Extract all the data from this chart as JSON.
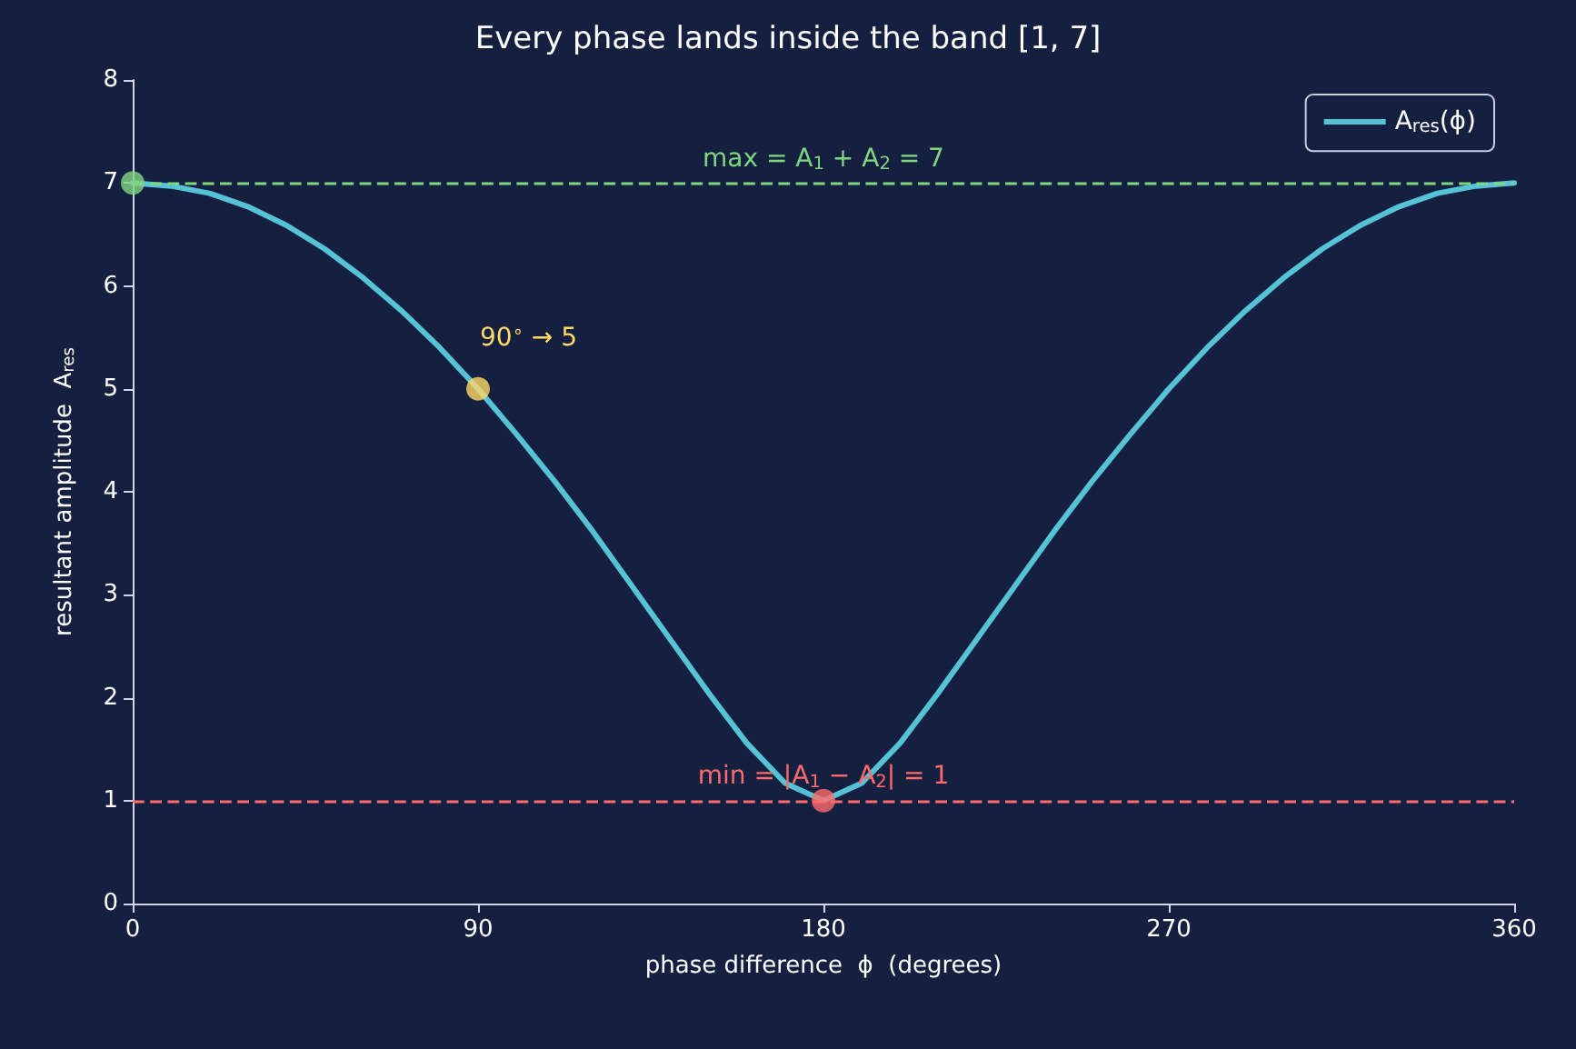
{
  "chart_data": {
    "type": "line",
    "title": "Every phase lands inside the band [1, 7]",
    "xlabel": "phase difference  ϕ  (degrees)",
    "ylabel": "resultant amplitude  A$_{res}$",
    "xlim": [
      0,
      360
    ],
    "xticks": [
      0,
      90,
      180,
      270,
      360
    ],
    "ylim": [
      0,
      8
    ],
    "yticks": [
      0,
      1,
      2,
      3,
      4,
      5,
      6,
      7,
      8
    ],
    "grid": false,
    "legend": "top right",
    "series": [
      {
        "name": "A$_{res}$(ϕ)",
        "color": "#56c2d6",
        "marker": "none",
        "line_style": "solid",
        "x": [
          0,
          10,
          20,
          30,
          40,
          50,
          60,
          70,
          80,
          90,
          100,
          110,
          120,
          130,
          140,
          150,
          160,
          170,
          180,
          190,
          200,
          210,
          220,
          230,
          240,
          250,
          260,
          270,
          280,
          290,
          300,
          310,
          320,
          330,
          340,
          350,
          360
        ],
        "values": [
          7,
          6.97,
          6.9,
          6.77,
          6.59,
          6.36,
          6.08,
          5.76,
          5.4,
          5,
          4.56,
          4.1,
          3.61,
          3.09,
          2.57,
          2.05,
          1.56,
          1.17,
          1,
          1.17,
          1.56,
          2.05,
          2.57,
          3.09,
          3.61,
          4.1,
          4.56,
          5,
          5.4,
          5.76,
          6.08,
          6.36,
          6.59,
          6.77,
          6.9,
          6.97,
          7
        ]
      },
      {
        "type": "scatter",
        "color": "#7fd67f",
        "marker": "circle",
        "x": [
          0
        ],
        "values": [
          7
        ]
      },
      {
        "type": "scatter",
        "color": "#ffd866",
        "marker": "circle",
        "x": [
          90
        ],
        "values": [
          5
        ]
      },
      {
        "type": "scatter",
        "color": "#ff6b6b",
        "marker": "circle",
        "x": [
          180
        ],
        "values": [
          1
        ]
      }
    ],
    "ref_lines": [
      {
        "axis": "y",
        "value": 7,
        "label": "max = A$_{1}$ + A$_{2}$ = 7",
        "color": "#7fd67f",
        "line_style": "dashed"
      },
      {
        "axis": "y",
        "value": 1,
        "label": "min = |A$_{1}$ − A$_{2}$| = 1",
        "color": "#ff6b6b",
        "line_style": "dashed"
      }
    ],
    "annotations": [
      {
        "text": "90$^{∘}$ → 5",
        "x": 90,
        "y": 5
      }
    ]
  }
}
